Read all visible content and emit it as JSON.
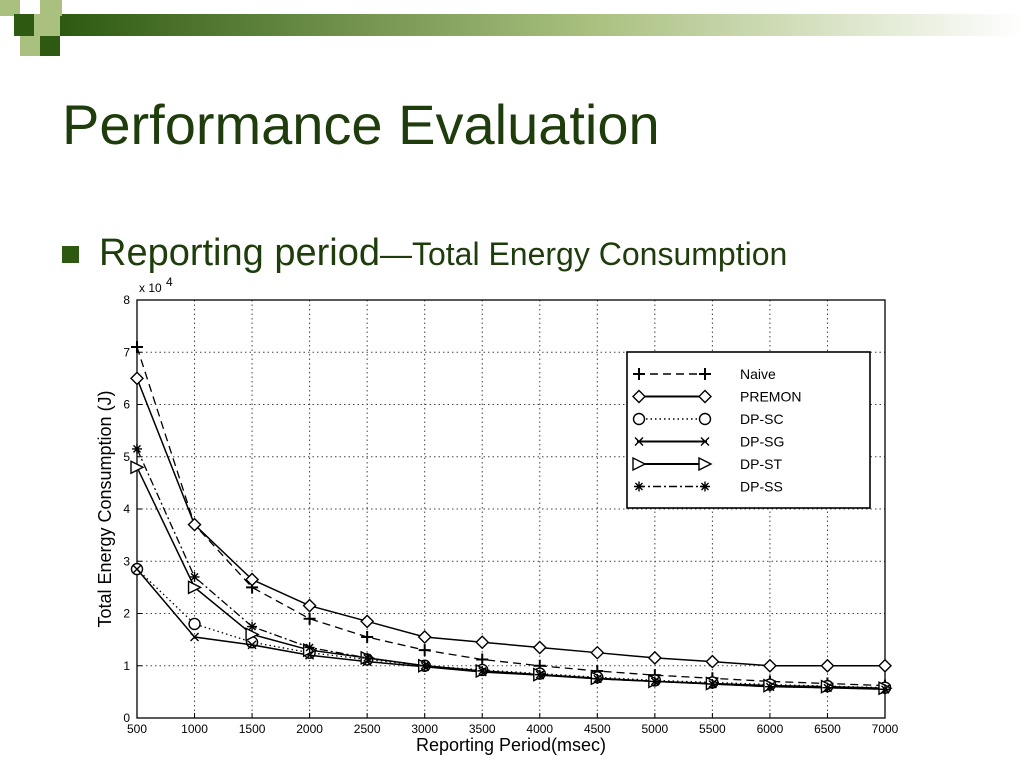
{
  "slide": {
    "title": "Performance Evaluation",
    "bullet_main": "Reporting period",
    "bullet_dash": "—",
    "bullet_sub": "Total Energy Consumption"
  },
  "colors": {
    "title": "#1f3d0c",
    "accent": "#2d5a10",
    "decor_light": "#a9c07f"
  },
  "chart_data": {
    "type": "line",
    "xlabel": "Reporting Period(msec)",
    "ylabel": "Total Energy Consumption (J)",
    "y_multiplier": "x 10",
    "y_exponent": "4",
    "xlim": [
      500,
      7000
    ],
    "ylim": [
      0,
      8
    ],
    "grid": true,
    "legend_position": "top-right",
    "x_ticks": [
      500,
      1000,
      1500,
      2000,
      2500,
      3000,
      3500,
      4000,
      4500,
      5000,
      5500,
      6000,
      6500,
      7000
    ],
    "y_ticks": [
      0,
      1,
      2,
      3,
      4,
      5,
      6,
      7,
      8
    ],
    "x": [
      500,
      1000,
      1500,
      2000,
      2500,
      3000,
      3500,
      4000,
      4500,
      5000,
      5500,
      6000,
      6500,
      7000
    ],
    "series": [
      {
        "name": "Naive",
        "line": "dashed",
        "marker": "plus",
        "values": [
          7.1,
          3.7,
          2.5,
          1.9,
          1.55,
          1.3,
          1.12,
          1.0,
          0.9,
          0.82,
          0.76,
          0.7,
          0.66,
          0.62
        ]
      },
      {
        "name": "PREMON",
        "line": "solid",
        "marker": "diamond",
        "values": [
          6.5,
          3.7,
          2.65,
          2.15,
          1.85,
          1.55,
          1.45,
          1.35,
          1.25,
          1.15,
          1.08,
          1.0,
          1.0,
          1.0
        ]
      },
      {
        "name": "DP-SC",
        "line": "dotted",
        "marker": "circle",
        "values": [
          2.85,
          1.8,
          1.45,
          1.25,
          1.12,
          1.0,
          0.92,
          0.85,
          0.78,
          0.72,
          0.68,
          0.64,
          0.61,
          0.58
        ]
      },
      {
        "name": "DP-SG",
        "line": "solid",
        "marker": "x",
        "values": [
          2.85,
          1.55,
          1.4,
          1.2,
          1.08,
          0.98,
          0.88,
          0.82,
          0.75,
          0.7,
          0.65,
          0.6,
          0.58,
          0.55
        ]
      },
      {
        "name": "DP-ST",
        "line": "solid",
        "marker": "triangle",
        "values": [
          4.8,
          2.5,
          1.6,
          1.3,
          1.15,
          1.0,
          0.9,
          0.83,
          0.76,
          0.7,
          0.66,
          0.62,
          0.6,
          0.57
        ]
      },
      {
        "name": "DP-SS",
        "line": "dashdot",
        "marker": "star",
        "values": [
          5.15,
          2.7,
          1.75,
          1.35,
          1.15,
          1.0,
          0.9,
          0.83,
          0.75,
          0.7,
          0.65,
          0.6,
          0.58,
          0.55
        ]
      }
    ]
  }
}
